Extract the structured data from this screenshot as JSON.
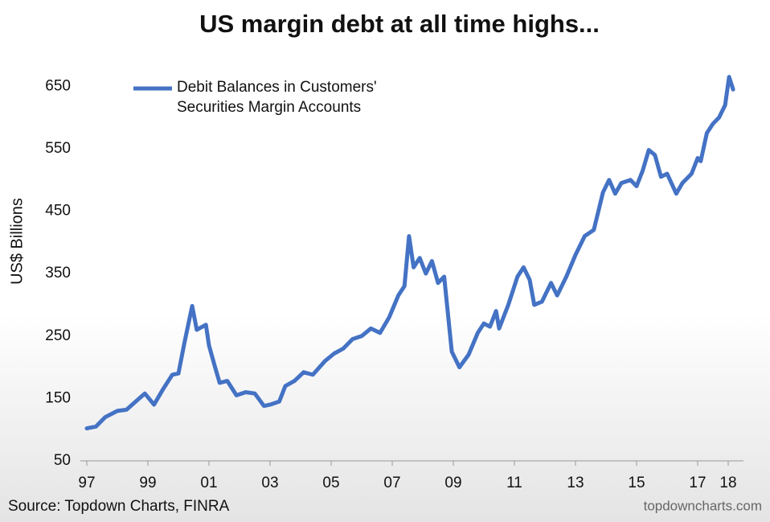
{
  "chart_data": {
    "type": "line",
    "title": "US margin debt at all time highs...",
    "ylabel": "US$ Billions",
    "source": "Source: Topdown Charts, FINRA",
    "watermark": "topdowncharts.com",
    "legend_position": "upper left",
    "xlim": [
      1997,
      2018.5
    ],
    "ylim": [
      50,
      680
    ],
    "yticks": [
      50,
      150,
      250,
      350,
      450,
      550,
      650
    ],
    "xticks": [
      {
        "value": 1997,
        "label": "97"
      },
      {
        "value": 1999,
        "label": "99"
      },
      {
        "value": 2001,
        "label": "01"
      },
      {
        "value": 2003,
        "label": "03"
      },
      {
        "value": 2005,
        "label": "05"
      },
      {
        "value": 2007,
        "label": "07"
      },
      {
        "value": 2009,
        "label": "09"
      },
      {
        "value": 2011,
        "label": "11"
      },
      {
        "value": 2013,
        "label": "13"
      },
      {
        "value": 2015,
        "label": "15"
      },
      {
        "value": 2017,
        "label": "17"
      },
      {
        "value": 2018,
        "label": "18"
      }
    ],
    "x": [
      1997.0,
      1997.3,
      1997.6,
      1998.0,
      1998.3,
      1998.6,
      1998.9,
      1999.2,
      1999.5,
      1999.8,
      2000.0,
      2000.2,
      2000.45,
      2000.6,
      2000.9,
      2001.0,
      2001.2,
      2001.35,
      2001.6,
      2001.9,
      2002.2,
      2002.5,
      2002.8,
      2003.0,
      2003.3,
      2003.5,
      2003.8,
      2004.1,
      2004.4,
      2004.8,
      2005.1,
      2005.4,
      2005.7,
      2006.0,
      2006.3,
      2006.6,
      2006.9,
      2007.2,
      2007.4,
      2007.55,
      2007.7,
      2007.9,
      2008.1,
      2008.3,
      2008.5,
      2008.7,
      2008.95,
      2009.2,
      2009.5,
      2009.8,
      2010.0,
      2010.2,
      2010.4,
      2010.5,
      2010.8,
      2011.1,
      2011.3,
      2011.5,
      2011.65,
      2011.9,
      2012.2,
      2012.4,
      2012.7,
      2013.0,
      2013.3,
      2013.6,
      2013.9,
      2014.1,
      2014.3,
      2014.5,
      2014.8,
      2015.0,
      2015.2,
      2015.4,
      2015.6,
      2015.8,
      2016.0,
      2016.3,
      2016.5,
      2016.8,
      2017.0,
      2017.1,
      2017.3,
      2017.5,
      2017.7,
      2017.9,
      2018.03,
      2018.16
    ],
    "series": [
      {
        "name": "Debit Balances in Customers' Securities Margin Accounts",
        "color": "#4472c4",
        "values": [
          102,
          105,
          120,
          130,
          132,
          145,
          158,
          140,
          165,
          188,
          190,
          240,
          298,
          260,
          268,
          235,
          200,
          175,
          178,
          155,
          160,
          158,
          138,
          140,
          145,
          170,
          178,
          192,
          188,
          210,
          222,
          230,
          245,
          250,
          262,
          255,
          280,
          315,
          330,
          410,
          360,
          375,
          350,
          370,
          335,
          345,
          225,
          200,
          220,
          255,
          270,
          265,
          290,
          262,
          300,
          345,
          360,
          340,
          300,
          305,
          335,
          315,
          345,
          380,
          410,
          420,
          480,
          500,
          478,
          495,
          500,
          490,
          515,
          548,
          540,
          505,
          510,
          478,
          495,
          510,
          535,
          530,
          575,
          590,
          600,
          620,
          665,
          645
        ]
      }
    ]
  }
}
